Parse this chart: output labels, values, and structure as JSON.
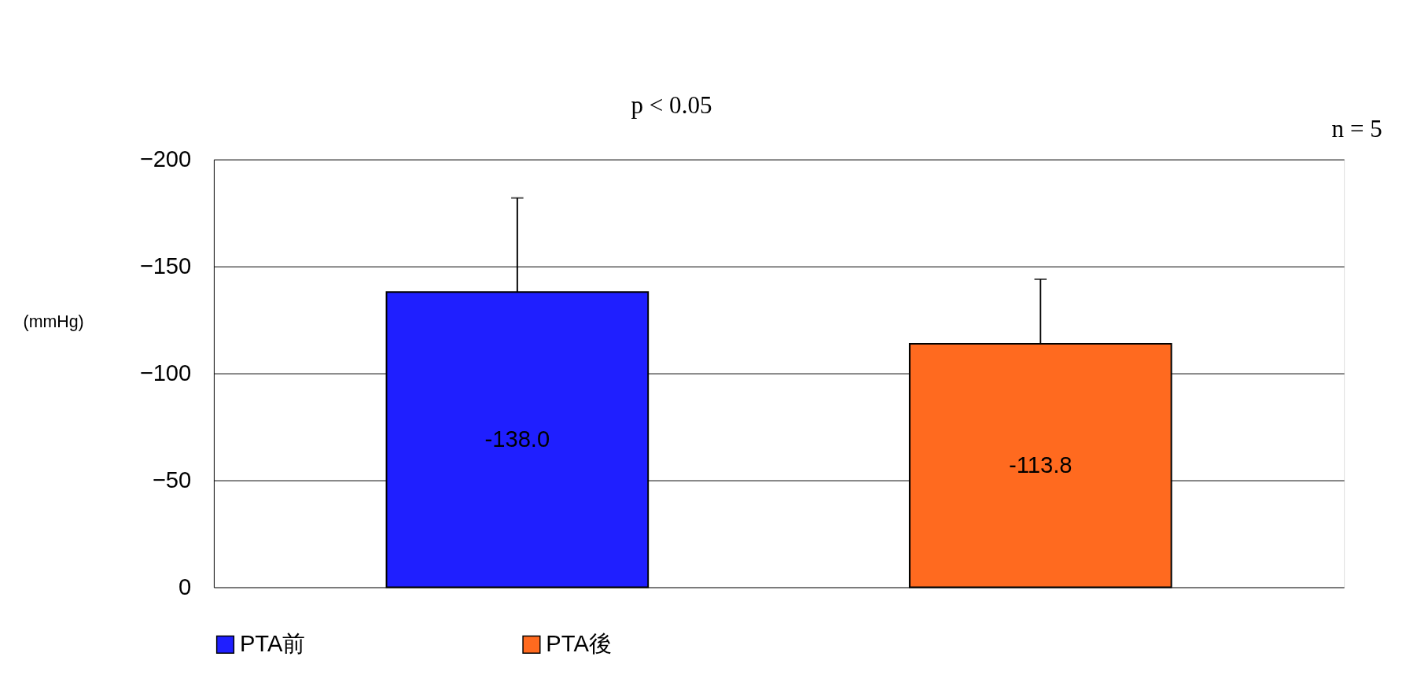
{
  "chart_data": {
    "type": "bar",
    "categories": [
      null
    ],
    "series": [
      {
        "name": "PTA前",
        "color": "#1f1fff",
        "values": [
          -138.0
        ],
        "value_labels": [
          "-138.0"
        ],
        "errors": [
          [
            -182,
            -138.0
          ]
        ]
      },
      {
        "name": "PTA後",
        "color": "#ff6a1f",
        "values": [
          -113.8
        ],
        "value_labels": [
          "-113.8"
        ],
        "errors": [
          [
            -144,
            -113.8
          ]
        ]
      }
    ],
    "ylabel": "(mmHg)",
    "ylim": [
      0,
      -200
    ],
    "yticks": [
      0,
      -50,
      -100,
      -150,
      -200
    ],
    "grid": "y",
    "legend": "bottom",
    "tick_labels": "y",
    "annotations": [
      "p < 0.05",
      "n = 5"
    ]
  }
}
